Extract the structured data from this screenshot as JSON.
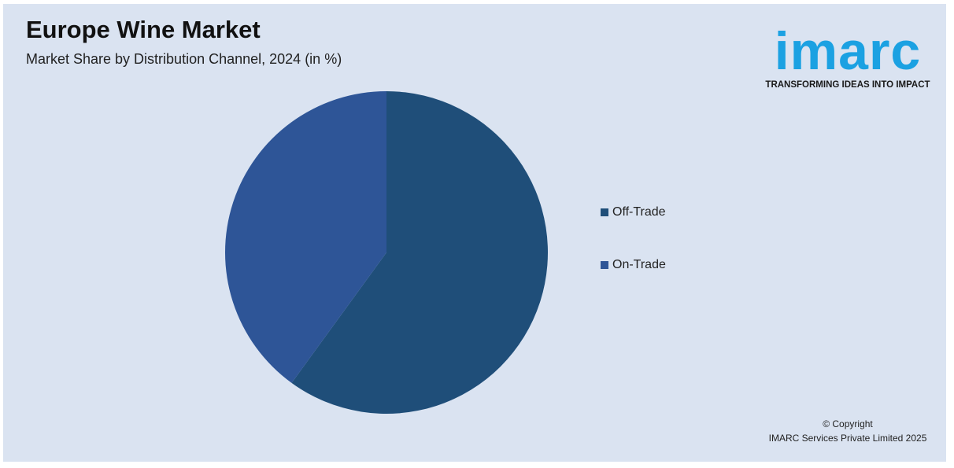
{
  "chart_data": {
    "type": "pie",
    "title": "Europe Wine Market",
    "subtitle": "Market Share by Distribution Channel, 2024 (in %)",
    "categories": [
      "Off-Trade",
      "On-Trade"
    ],
    "values": [
      60,
      40
    ],
    "colors": [
      "#1f4e79",
      "#2e5597"
    ],
    "legend": "right"
  },
  "logo": {
    "name": "imarc",
    "tagline": "TRANSFORMING IDEAS INTO IMPACT"
  },
  "copyright": [
    "© Copyright",
    "IMARC Services Private Limited 2025"
  ]
}
